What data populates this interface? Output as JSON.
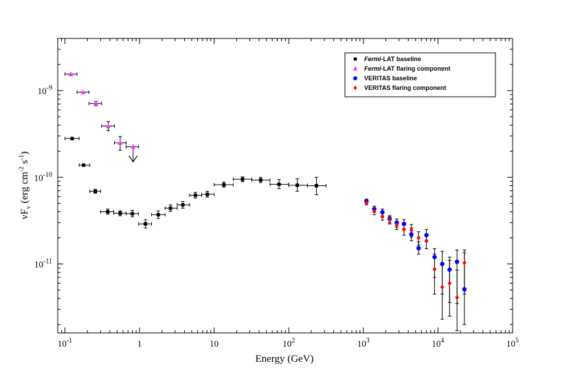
{
  "chart_data": {
    "type": "scatter",
    "x_scale": "log",
    "y_scale": "log",
    "xlabel": "Energy (GeV)",
    "ylabel": {
      "base": "νF",
      "sub": "ν",
      "units_open": " (erg cm",
      "units_exp1": "-2",
      "units_mid": " s",
      "units_exp2": "-1",
      "units_close": ")"
    },
    "xlim": [
      0.08,
      100000
    ],
    "ylim": [
      1.6e-12,
      4e-09
    ],
    "x_ticks": [
      {
        "value": 0.1,
        "base": "10",
        "exp": "-1"
      },
      {
        "value": 1,
        "base": "1",
        "exp": ""
      },
      {
        "value": 10,
        "base": "10",
        "exp": ""
      },
      {
        "value": 100,
        "base": "10",
        "exp": "2"
      },
      {
        "value": 1000,
        "base": "10",
        "exp": "3"
      },
      {
        "value": 10000,
        "base": "10",
        "exp": "4"
      },
      {
        "value": 100000,
        "base": "10",
        "exp": "5"
      }
    ],
    "y_ticks": [
      {
        "value": 1e-09,
        "base": "10",
        "exp": "-9"
      },
      {
        "value": 1e-10,
        "base": "10",
        "exp": "-10"
      },
      {
        "value": 1e-11,
        "base": "10",
        "exp": "-11"
      }
    ],
    "legend": {
      "position": "top-right",
      "entries": [
        {
          "italic": "Fermi",
          "label": "-LAT baseline",
          "marker": "square",
          "color": "#000000"
        },
        {
          "italic": "Fermi",
          "label": "-LAT flaring component",
          "marker": "triangle",
          "color": "#ff33ff"
        },
        {
          "italic": "",
          "label": "VERITAS baseline",
          "marker": "circle",
          "color": "#0000ff"
        },
        {
          "italic": "",
          "label": "VERITAS flaring component",
          "marker": "diamond",
          "color": "#ff0000"
        }
      ]
    },
    "series": [
      {
        "name": "Fermi-LAT baseline",
        "marker": "square",
        "color": "#000000",
        "points": [
          {
            "x": 0.125,
            "y": 2.8e-10,
            "xlo": 0.1,
            "xhi": 0.155
          },
          {
            "x": 0.178,
            "y": 1.38e-10,
            "xlo": 0.155,
            "xhi": 0.215
          },
          {
            "x": 0.255,
            "y": 6.9e-11,
            "xlo": 0.215,
            "xhi": 0.3,
            "ylo": 6.55e-11,
            "yhi": 7.25e-11
          },
          {
            "x": 0.375,
            "y": 4e-11,
            "xlo": 0.3,
            "xhi": 0.45,
            "ylo": 3.75e-11,
            "yhi": 4.3e-11
          },
          {
            "x": 0.55,
            "y": 3.85e-11,
            "xlo": 0.45,
            "xhi": 0.66,
            "ylo": 3.6e-11,
            "yhi": 4.1e-11
          },
          {
            "x": 0.8,
            "y": 3.8e-11,
            "xlo": 0.66,
            "xhi": 0.97,
            "ylo": 3.5e-11,
            "yhi": 4.15e-11
          },
          {
            "x": 1.2,
            "y": 2.9e-11,
            "xlo": 0.97,
            "xhi": 1.45,
            "ylo": 2.6e-11,
            "yhi": 3.25e-11
          },
          {
            "x": 1.78,
            "y": 3.7e-11,
            "xlo": 1.45,
            "xhi": 2.2,
            "ylo": 3.35e-11,
            "yhi": 4.1e-11
          },
          {
            "x": 2.6,
            "y": 4.4e-11,
            "xlo": 2.2,
            "xhi": 3.2,
            "ylo": 4.05e-11,
            "yhi": 4.8e-11
          },
          {
            "x": 3.8,
            "y": 4.8e-11,
            "xlo": 3.2,
            "xhi": 4.7,
            "ylo": 4.4e-11,
            "yhi": 5.25e-11
          },
          {
            "x": 5.6,
            "y": 6.2e-11,
            "xlo": 4.7,
            "xhi": 6.8,
            "ylo": 5.75e-11,
            "yhi": 6.7e-11
          },
          {
            "x": 8.1,
            "y": 6.35e-11,
            "xlo": 6.8,
            "xhi": 10.0,
            "ylo": 5.9e-11,
            "yhi": 6.9e-11
          },
          {
            "x": 13.5,
            "y": 8.2e-11,
            "xlo": 10.0,
            "xhi": 18.0,
            "ylo": 7.7e-11,
            "yhi": 8.8e-11
          },
          {
            "x": 24.0,
            "y": 9.5e-11,
            "xlo": 18.0,
            "xhi": 32.0,
            "ylo": 8.9e-11,
            "yhi": 1.01e-10
          },
          {
            "x": 42.0,
            "y": 9.3e-11,
            "xlo": 32.0,
            "xhi": 56.0,
            "ylo": 8.7e-11,
            "yhi": 1e-10
          },
          {
            "x": 74.0,
            "y": 8.3e-11,
            "xlo": 56.0,
            "xhi": 100.0,
            "ylo": 7.4e-11,
            "yhi": 9.4e-11
          },
          {
            "x": 130.0,
            "y": 8.1e-11,
            "xlo": 100.0,
            "xhi": 178.0,
            "ylo": 6.9e-11,
            "yhi": 9.6e-11
          },
          {
            "x": 235.0,
            "y": 8e-11,
            "xlo": 178.0,
            "xhi": 316.0,
            "ylo": 6.3e-11,
            "yhi": 1e-10
          }
        ]
      },
      {
        "name": "Fermi-LAT flaring component",
        "marker": "triangle",
        "color": "#ff33ff",
        "points": [
          {
            "x": 0.12,
            "y": 1.55e-09,
            "xlo": 0.1,
            "xhi": 0.145
          },
          {
            "x": 0.175,
            "y": 9.6e-10,
            "xlo": 0.145,
            "xhi": 0.21
          },
          {
            "x": 0.26,
            "y": 7.1e-10,
            "xlo": 0.21,
            "xhi": 0.31,
            "ylo": 6.7e-10,
            "yhi": 7.5e-10
          },
          {
            "x": 0.38,
            "y": 3.9e-10,
            "xlo": 0.31,
            "xhi": 0.46,
            "ylo": 3.45e-10,
            "yhi": 4.4e-10
          },
          {
            "x": 0.55,
            "y": 2.5e-10,
            "xlo": 0.46,
            "xhi": 0.66,
            "ylo": 2.05e-10,
            "yhi": 2.95e-10
          },
          {
            "x": 0.82,
            "y": 2.25e-10,
            "xlo": 0.66,
            "xhi": 0.97,
            "upper_limit": true
          }
        ]
      },
      {
        "name": "VERITAS baseline",
        "marker": "circle",
        "color": "#0000ff",
        "points": [
          {
            "x": 1100,
            "y": 5.3e-11,
            "ylo": 5e-11,
            "yhi": 5.6e-11
          },
          {
            "x": 1400,
            "y": 4.3e-11,
            "ylo": 3.95e-11,
            "yhi": 4.65e-11
          },
          {
            "x": 1800,
            "y": 3.95e-11,
            "ylo": 3.6e-11,
            "yhi": 4.3e-11
          },
          {
            "x": 2250,
            "y": 3.3e-11,
            "ylo": 2.98e-11,
            "yhi": 3.62e-11
          },
          {
            "x": 2800,
            "y": 3e-11,
            "ylo": 2.65e-11,
            "yhi": 3.3e-11
          },
          {
            "x": 3500,
            "y": 2.9e-11,
            "ylo": 2.55e-11,
            "yhi": 3.25e-11
          },
          {
            "x": 4400,
            "y": 2.2e-11,
            "ylo": 1.85e-11,
            "yhi": 2.6e-11
          },
          {
            "x": 5500,
            "y": 1.52e-11,
            "ylo": 1.3e-11,
            "yhi": 1.8e-11
          },
          {
            "x": 7000,
            "y": 2.15e-11,
            "ylo": 1.8e-11,
            "yhi": 2.5e-11
          },
          {
            "x": 9000,
            "y": 1.2e-11,
            "ylo": 7e-12,
            "yhi": 1.5e-11
          },
          {
            "x": 11400,
            "y": 1e-11,
            "ylo": 4.5e-12,
            "yhi": 1.4e-11
          },
          {
            "x": 14300,
            "y": 8.6e-12,
            "ylo": 3.6e-12,
            "yhi": 1.2e-11
          },
          {
            "x": 18000,
            "y": 1.06e-11,
            "ylo": 3.5e-12,
            "yhi": 1.45e-11
          },
          {
            "x": 22600,
            "y": 5.1e-12,
            "ylo": 2e-12,
            "yhi": 1.35e-11
          }
        ]
      },
      {
        "name": "VERITAS flaring component",
        "marker": "diamond",
        "color": "#ff0000",
        "points": [
          {
            "x": 1100,
            "y": 5.1e-11,
            "ylo": 4.8e-11,
            "yhi": 5.4e-11
          },
          {
            "x": 1400,
            "y": 4.05e-11,
            "ylo": 3.7e-11,
            "yhi": 4.4e-11
          },
          {
            "x": 1800,
            "y": 3.5e-11,
            "ylo": 3.2e-11,
            "yhi": 3.9e-11
          },
          {
            "x": 2250,
            "y": 3.2e-11,
            "ylo": 2.9e-11,
            "yhi": 3.5e-11
          },
          {
            "x": 2800,
            "y": 2.8e-11,
            "ylo": 2.5e-11,
            "yhi": 3.1e-11
          },
          {
            "x": 3500,
            "y": 2.5e-11,
            "ylo": 2.15e-11,
            "yhi": 2.85e-11
          },
          {
            "x": 4400,
            "y": 2.45e-11,
            "ylo": 2.05e-11,
            "yhi": 2.85e-11
          },
          {
            "x": 5500,
            "y": 2e-11,
            "ylo": 1.65e-11,
            "yhi": 2.35e-11
          },
          {
            "x": 7000,
            "y": 1.85e-11,
            "ylo": 1.5e-11,
            "yhi": 2.2e-11
          },
          {
            "x": 9000,
            "y": 8.7e-12,
            "ylo": 4.5e-12,
            "yhi": 1.3e-11
          },
          {
            "x": 11400,
            "y": 5.4e-12,
            "ylo": 2.3e-12,
            "yhi": 1e-11
          },
          {
            "x": 14300,
            "y": 6e-12,
            "ylo": 2.5e-12,
            "yhi": 1.1e-11
          },
          {
            "x": 18000,
            "y": 4.1e-12,
            "ylo": 1.7e-12,
            "yhi": 8.5e-12
          },
          {
            "x": 22600,
            "y": 1.03e-11,
            "ylo": 4.5e-12,
            "yhi": 1.45e-11
          }
        ]
      }
    ]
  }
}
